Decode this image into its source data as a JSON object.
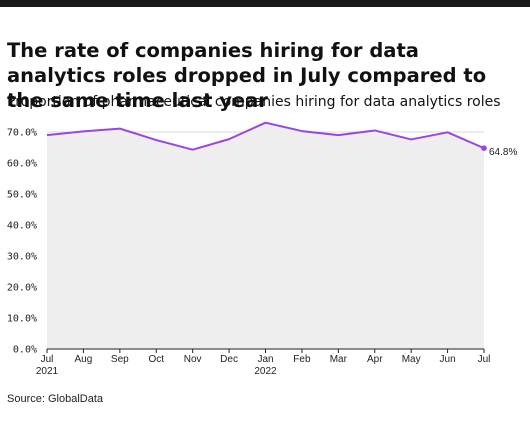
{
  "title": "The rate of companies hiring for data analytics roles dropped in July compared to the same time last year",
  "subtitle": "Proportion of pharmaceutical companies hiring for data analytics roles",
  "source": "Source: GlobalData",
  "colors": {
    "line": "#9b45e0",
    "area": "#eeeeee",
    "grid": "#d9d9d9",
    "topbar": "#1a1a1a"
  },
  "chart_data": {
    "type": "area",
    "title": "The rate of companies hiring for data analytics roles dropped in July compared to the same time last year",
    "subtitle": "Proportion of pharmaceutical companies hiring for data analytics roles",
    "categories": [
      "Jul 2021",
      "Aug",
      "Sep",
      "Oct",
      "Nov",
      "Dec",
      "Jan 2022",
      "Feb",
      "Mar",
      "Apr",
      "May",
      "Jun",
      "Jul"
    ],
    "x_tick_labels": [
      {
        "line1": "Jul",
        "line2": "2021"
      },
      {
        "line1": "Aug",
        "line2": ""
      },
      {
        "line1": "Sep",
        "line2": ""
      },
      {
        "line1": "Oct",
        "line2": ""
      },
      {
        "line1": "Nov",
        "line2": ""
      },
      {
        "line1": "Dec",
        "line2": ""
      },
      {
        "line1": "Jan",
        "line2": "2022"
      },
      {
        "line1": "Feb",
        "line2": ""
      },
      {
        "line1": "Mar",
        "line2": ""
      },
      {
        "line1": "Apr",
        "line2": ""
      },
      {
        "line1": "May",
        "line2": ""
      },
      {
        "line1": "Jun",
        "line2": ""
      },
      {
        "line1": "Jul",
        "line2": ""
      }
    ],
    "values": [
      69.0,
      70.2,
      71.1,
      67.4,
      64.3,
      67.7,
      73.0,
      70.3,
      69.0,
      70.5,
      67.6,
      69.9,
      64.8
    ],
    "end_label": "64.8%",
    "y_ticks": [
      "0.0%",
      "10.0%",
      "20.0%",
      "30.0%",
      "40.0%",
      "50.0%",
      "60.0%",
      "70.0%"
    ],
    "y_tick_values": [
      0,
      10,
      20,
      30,
      40,
      50,
      60,
      70
    ],
    "ylim": [
      0,
      70
    ],
    "grid": true,
    "legend": "none",
    "xlabel": "",
    "ylabel": ""
  }
}
